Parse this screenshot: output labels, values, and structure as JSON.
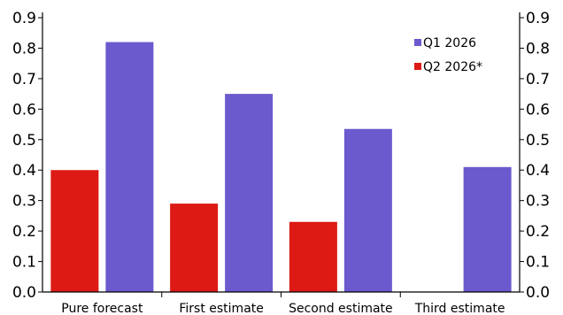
{
  "chart_data": {
    "type": "bar",
    "title": "",
    "xlabel": "",
    "ylabel": "",
    "ylim": [
      0,
      0.9
    ],
    "yticks": [
      "0.0",
      "0.1",
      "0.2",
      "0.3",
      "0.4",
      "0.5",
      "0.6",
      "0.7",
      "0.8",
      "0.9"
    ],
    "right_axis": true,
    "grid": false,
    "legend_position": "top-right",
    "categories": [
      "Pure forecast",
      "First estimate",
      "Second estimate",
      "Third estimate"
    ],
    "series": [
      {
        "name": "Q2 2026*",
        "color": "#dd1a14",
        "values": [
          0.4,
          0.29,
          0.23,
          null
        ]
      },
      {
        "name": "Q1 2026",
        "color": "#6a5acd",
        "values": [
          0.82,
          0.65,
          0.535,
          0.41
        ]
      }
    ],
    "legend_order": [
      1,
      0
    ]
  }
}
